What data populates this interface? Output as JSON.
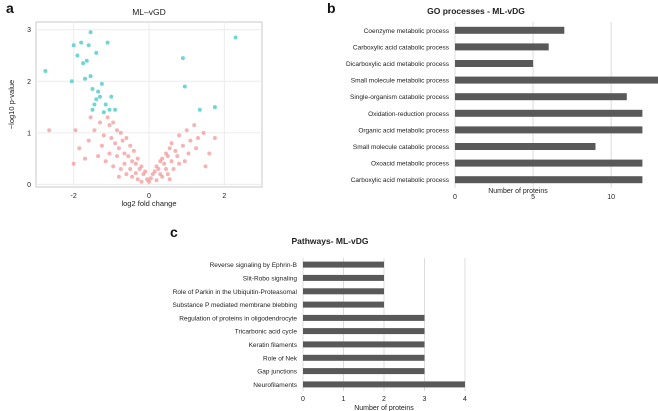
{
  "panel_letters": {
    "a": "a",
    "b": "b",
    "c": "c"
  },
  "chart_data": [
    {
      "panel": "a",
      "type": "scatter",
      "title": "ML–vGD",
      "xlabel": "log2 fold change",
      "ylabel": "−log10 p-value",
      "xlim": [
        -3.0,
        3.0
      ],
      "ylim": [
        -0.05,
        3.15
      ],
      "xticks": [
        -2,
        0,
        2
      ],
      "yticks": [
        0,
        1,
        2,
        3
      ],
      "grid": true,
      "colors": {
        "significant": "#5fd1cf",
        "not_significant": "#f08080",
        "panel_bg": "#ffffff"
      },
      "series": [
        {
          "points": [
            [
              -2.75,
              2.2
            ],
            [
              -2.0,
              2.7
            ],
            [
              -1.9,
              2.5
            ],
            [
              -1.75,
              2.35
            ],
            [
              -1.8,
              2.75
            ],
            [
              -1.55,
              2.95
            ],
            [
              -1.6,
              2.7
            ],
            [
              -1.4,
              2.55
            ],
            [
              -1.1,
              2.75
            ],
            [
              -1.65,
              2.4
            ],
            [
              -1.55,
              2.1
            ],
            [
              -1.7,
              2.05
            ],
            [
              -2.05,
              2.0
            ],
            [
              -1.5,
              1.85
            ],
            [
              -1.25,
              1.95
            ],
            [
              -1.35,
              1.8
            ],
            [
              -1.45,
              1.55
            ],
            [
              -1.4,
              1.65
            ],
            [
              -1.15,
              1.55
            ],
            [
              -1.0,
              1.7
            ],
            [
              -1.05,
              1.45
            ],
            [
              -1.2,
              1.4
            ],
            [
              -1.5,
              1.45
            ],
            [
              -0.9,
              1.45
            ],
            [
              -1.3,
              1.7
            ],
            [
              0.9,
              2.45
            ],
            [
              2.3,
              2.85
            ],
            [
              1.75,
              1.5
            ],
            [
              1.35,
              1.45
            ],
            [
              0.95,
              1.9
            ]
          ]
        },
        {
          "points": [
            [
              -2.65,
              1.05
            ],
            [
              -1.95,
              1.05
            ],
            [
              -1.85,
              0.7
            ],
            [
              -1.55,
              1.3
            ],
            [
              -1.45,
              1.05
            ],
            [
              -1.3,
              1.2
            ],
            [
              -1.2,
              0.95
            ],
            [
              -1.1,
              1.3
            ],
            [
              -1.05,
              1.15
            ],
            [
              -1.0,
              0.9
            ],
            [
              -0.95,
              1.2
            ],
            [
              -0.9,
              0.8
            ],
            [
              -0.85,
              1.05
            ],
            [
              -0.8,
              0.7
            ],
            [
              -0.75,
              1.0
            ],
            [
              -0.7,
              0.85
            ],
            [
              -0.65,
              0.6
            ],
            [
              -0.6,
              0.9
            ],
            [
              -0.55,
              0.55
            ],
            [
              -0.5,
              0.75
            ],
            [
              -0.45,
              0.45
            ],
            [
              -0.4,
              0.65
            ],
            [
              -0.35,
              0.4
            ],
            [
              -0.3,
              0.5
            ],
            [
              -0.25,
              0.3
            ],
            [
              -0.2,
              0.35
            ],
            [
              -0.15,
              0.2
            ],
            [
              -0.1,
              0.25
            ],
            [
              -0.05,
              0.1
            ],
            [
              0.0,
              0.05
            ],
            [
              0.05,
              0.12
            ],
            [
              0.1,
              0.2
            ],
            [
              0.15,
              0.25
            ],
            [
              0.2,
              0.35
            ],
            [
              0.25,
              0.3
            ],
            [
              0.3,
              0.45
            ],
            [
              0.35,
              0.5
            ],
            [
              0.4,
              0.4
            ],
            [
              0.45,
              0.6
            ],
            [
              0.5,
              0.55
            ],
            [
              0.55,
              0.7
            ],
            [
              0.6,
              0.8
            ],
            [
              0.7,
              0.65
            ],
            [
              0.8,
              0.95
            ],
            [
              0.9,
              0.75
            ],
            [
              1.0,
              1.05
            ],
            [
              1.1,
              0.85
            ],
            [
              1.2,
              1.15
            ],
            [
              1.3,
              0.9
            ],
            [
              1.45,
              1.0
            ],
            [
              1.6,
              0.6
            ],
            [
              1.75,
              0.9
            ],
            [
              -1.35,
              0.55
            ],
            [
              -1.15,
              0.45
            ],
            [
              -0.95,
              0.35
            ],
            [
              -0.75,
              0.3
            ],
            [
              -0.6,
              0.2
            ],
            [
              -0.45,
              0.15
            ],
            [
              -0.3,
              0.1
            ],
            [
              -0.2,
              0.05
            ],
            [
              0.2,
              0.08
            ],
            [
              0.35,
              0.15
            ],
            [
              0.5,
              0.2
            ],
            [
              0.65,
              0.3
            ],
            [
              0.8,
              0.4
            ],
            [
              0.95,
              0.45
            ],
            [
              -1.6,
              0.85
            ],
            [
              -1.25,
              0.75
            ],
            [
              -0.85,
              0.55
            ],
            [
              -0.65,
              0.4
            ],
            [
              -0.5,
              0.3
            ],
            [
              -0.35,
              0.22
            ],
            [
              0.3,
              0.2
            ],
            [
              0.45,
              0.3
            ],
            [
              0.6,
              0.45
            ],
            [
              0.75,
              0.55
            ],
            [
              1.05,
              0.6
            ],
            [
              1.25,
              0.7
            ],
            [
              -2.0,
              0.4
            ],
            [
              -1.7,
              0.5
            ],
            [
              1.5,
              0.35
            ],
            [
              -1.05,
              0.6
            ],
            [
              -0.8,
              0.15
            ],
            [
              0.55,
              0.1
            ]
          ]
        }
      ]
    },
    {
      "panel": "b",
      "type": "bar",
      "orientation": "horizontal",
      "title": "GO processes - ML-vDG",
      "xlabel": "Number of  proteins",
      "ylabel": "",
      "xlim": [
        0,
        13
      ],
      "xticks": [
        0,
        5,
        10
      ],
      "grid": true,
      "bar_color": "#595959",
      "categories": [
        "Coenzyme metabolic process",
        "Carboxylic acid catabolic process",
        "Dicarboxylic acid metabolic process",
        "Small molecule metabolic process",
        "Single-organism catabolic process",
        "Oxidation-reduction process",
        "Organic acid metabolic process",
        "Small molecule catabolic process",
        "Oxoacid metabolic process",
        "Carboxylic acid metabolic process"
      ],
      "values": [
        7,
        6,
        5,
        13,
        11,
        12,
        12,
        9,
        12,
        12
      ]
    },
    {
      "panel": "c",
      "type": "bar",
      "orientation": "horizontal",
      "title": "Pathways- ML-vDG",
      "xlabel": "Number of proteins",
      "ylabel": "",
      "xlim": [
        0,
        4
      ],
      "xticks": [
        0,
        1,
        2,
        3,
        4
      ],
      "grid": true,
      "bar_color": "#595959",
      "categories": [
        "Reverse signaling by Ephrin-B",
        "Slit-Robo signaling",
        "Role of Parkin in the Ubiquitin-Proteasomal",
        "Substance P mediated membrane blebbing",
        "Regulation of  proteins in oligodendrocyte",
        "Tricarbonic acid cycle",
        "Keratin filaments",
        "Role of Nek",
        "Gap junctions",
        "Neurofilaments"
      ],
      "values": [
        2,
        2,
        2,
        2,
        3,
        3,
        3,
        3,
        3,
        4
      ]
    }
  ]
}
